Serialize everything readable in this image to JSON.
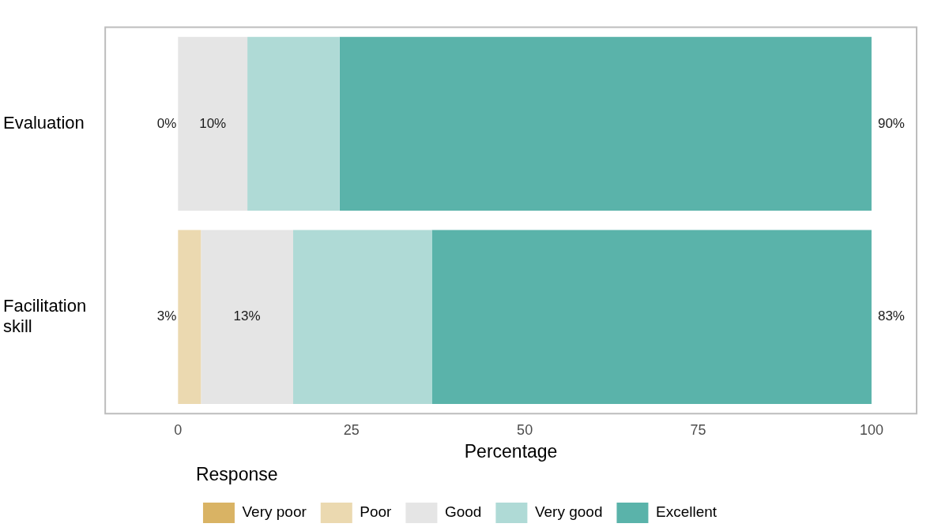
{
  "chart_data": {
    "type": "bar",
    "orientation": "horizontal",
    "stacked": true,
    "categories": [
      "Evaluation",
      "Facilitation skill"
    ],
    "series": [
      {
        "name": "Very poor",
        "color": "#d9b364",
        "values": [
          0,
          0
        ]
      },
      {
        "name": "Poor",
        "color": "#ebd9b0",
        "values": [
          0,
          3.3
        ]
      },
      {
        "name": "Good",
        "color": "#e5e5e5",
        "values": [
          10,
          13.3
        ]
      },
      {
        "name": "Very good",
        "color": "#afdad6",
        "values": [
          13.3,
          20
        ]
      },
      {
        "name": "Excellent",
        "color": "#5ab3aa",
        "values": [
          76.7,
          63.4
        ]
      }
    ],
    "xlabel": "Percentage",
    "legend_title": "Response",
    "legend": "bottom",
    "grid": false,
    "xlim": [
      -10.5,
      106.5
    ],
    "xticks": [
      0,
      25,
      50,
      75,
      100
    ],
    "annotations": [
      "0%",
      "10%",
      "90%",
      "3%",
      "13%",
      "83%"
    ]
  }
}
